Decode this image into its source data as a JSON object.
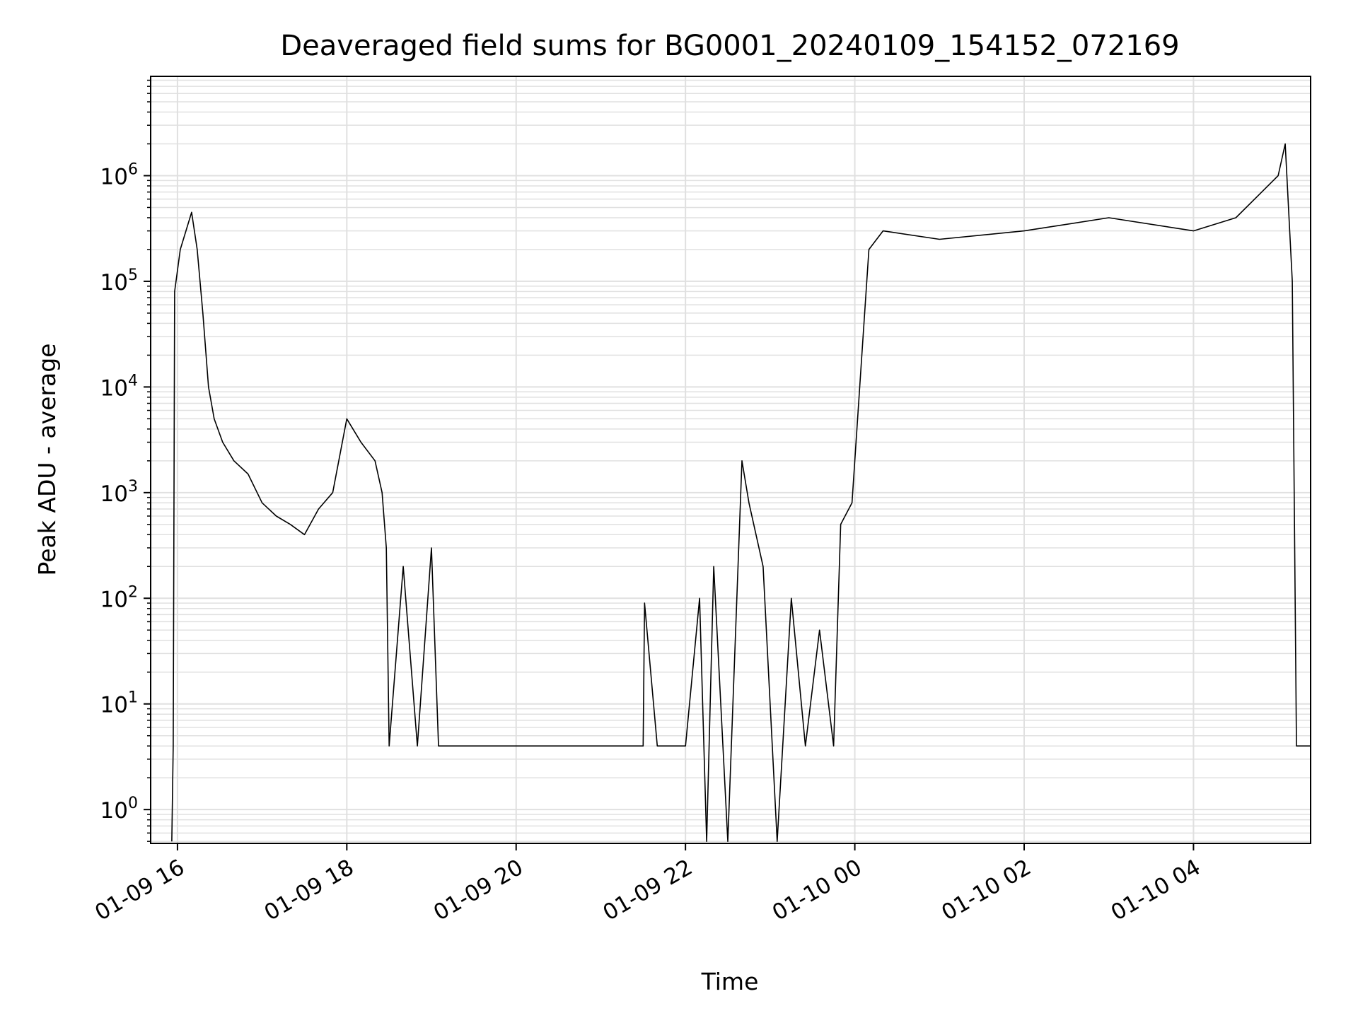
{
  "chart_data": {
    "type": "line",
    "title": "Deaveraged field sums for BG0001_20240109_154152_072169",
    "xlabel": "Time",
    "ylabel": "Peak ADU - average",
    "yscale": "log",
    "grid": true,
    "line_color": "#000000",
    "grid_color": "#e0e0e0",
    "xlim": [
      "2024-01-09 15:41",
      "2024-01-10 05:23"
    ],
    "ylim_exponent": [
      -0.32,
      0.94
    ],
    "x_ticks": [
      {
        "time": "2024-01-09 16:00",
        "label": "01-09 16"
      },
      {
        "time": "2024-01-09 18:00",
        "label": "01-09 18"
      },
      {
        "time": "2024-01-09 20:00",
        "label": "01-09 20"
      },
      {
        "time": "2024-01-09 22:00",
        "label": "01-09 22"
      },
      {
        "time": "2024-01-10 00:00",
        "label": "01-10 00"
      },
      {
        "time": "2024-01-10 02:00",
        "label": "01-10 02"
      },
      {
        "time": "2024-01-10 04:00",
        "label": "01-10 04"
      }
    ],
    "y_ticks": [
      {
        "exp": 0,
        "base": "10",
        "sup": "0"
      },
      {
        "exp": 1,
        "base": "10",
        "sup": "1"
      },
      {
        "exp": 2,
        "base": "10",
        "sup": "2"
      },
      {
        "exp": 3,
        "base": "10",
        "sup": "3"
      },
      {
        "exp": 4,
        "base": "10",
        "sup": "4"
      },
      {
        "exp": 5,
        "base": "10",
        "sup": "5"
      },
      {
        "exp": 6,
        "base": "10",
        "sup": "6"
      }
    ],
    "series": [
      {
        "points": [
          [
            "2024-01-09 15:56",
            0.5
          ],
          [
            "2024-01-09 15:57",
            4
          ],
          [
            "2024-01-09 15:58",
            80000
          ],
          [
            "2024-01-09 16:02",
            200000
          ],
          [
            "2024-01-09 16:06",
            300000
          ],
          [
            "2024-01-09 16:10",
            450000
          ],
          [
            "2024-01-09 16:14",
            200000
          ],
          [
            "2024-01-09 16:18",
            50000
          ],
          [
            "2024-01-09 16:22",
            10000
          ],
          [
            "2024-01-09 16:26",
            5000
          ],
          [
            "2024-01-09 16:32",
            3000
          ],
          [
            "2024-01-09 16:40",
            2000
          ],
          [
            "2024-01-09 16:50",
            1500
          ],
          [
            "2024-01-09 17:00",
            800
          ],
          [
            "2024-01-09 17:10",
            600
          ],
          [
            "2024-01-09 17:20",
            500
          ],
          [
            "2024-01-09 17:30",
            400
          ],
          [
            "2024-01-09 17:40",
            700
          ],
          [
            "2024-01-09 17:50",
            1000
          ],
          [
            "2024-01-09 18:00",
            5000
          ],
          [
            "2024-01-09 18:10",
            3000
          ],
          [
            "2024-01-09 18:20",
            2000
          ],
          [
            "2024-01-09 18:25",
            1000
          ],
          [
            "2024-01-09 18:28",
            300
          ],
          [
            "2024-01-09 18:30",
            4
          ],
          [
            "2024-01-09 18:40",
            200
          ],
          [
            "2024-01-09 18:50",
            4
          ],
          [
            "2024-01-09 19:00",
            300
          ],
          [
            "2024-01-09 19:05",
            4
          ],
          [
            "2024-01-09 21:30",
            4
          ],
          [
            "2024-01-09 21:31",
            90
          ],
          [
            "2024-01-09 21:40",
            4
          ],
          [
            "2024-01-09 22:00",
            4
          ],
          [
            "2024-01-09 22:10",
            100
          ],
          [
            "2024-01-09 22:15",
            0.5
          ],
          [
            "2024-01-09 22:20",
            200
          ],
          [
            "2024-01-09 22:30",
            0.5
          ],
          [
            "2024-01-09 22:40",
            2000
          ],
          [
            "2024-01-09 22:45",
            800
          ],
          [
            "2024-01-09 22:55",
            200
          ],
          [
            "2024-01-09 23:05",
            0.5
          ],
          [
            "2024-01-09 23:15",
            100
          ],
          [
            "2024-01-09 23:25",
            4
          ],
          [
            "2024-01-09 23:35",
            50
          ],
          [
            "2024-01-09 23:45",
            4
          ],
          [
            "2024-01-09 23:50",
            500
          ],
          [
            "2024-01-09 23:58",
            800
          ],
          [
            "2024-01-10 00:05",
            20000
          ],
          [
            "2024-01-10 00:10",
            200000
          ],
          [
            "2024-01-10 00:20",
            300000
          ],
          [
            "2024-01-10 01:00",
            250000
          ],
          [
            "2024-01-10 02:00",
            300000
          ],
          [
            "2024-01-10 03:00",
            400000
          ],
          [
            "2024-01-10 04:00",
            300000
          ],
          [
            "2024-01-10 04:30",
            400000
          ],
          [
            "2024-01-10 05:00",
            1000000
          ],
          [
            "2024-01-10 05:05",
            2000000
          ],
          [
            "2024-01-10 05:10",
            100000
          ],
          [
            "2024-01-10 05:13",
            4
          ],
          [
            "2024-01-10 05:23",
            4
          ]
        ]
      }
    ]
  }
}
